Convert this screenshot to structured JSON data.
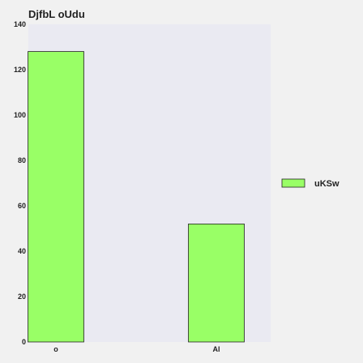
{
  "chart_data": {
    "type": "bar",
    "title": "DjfbL oUdu",
    "categories": [
      "o",
      "Al"
    ],
    "series": [
      {
        "name": "uKSw",
        "values": [
          128,
          52
        ],
        "color": "#99ff66"
      }
    ],
    "ylim": [
      0,
      140
    ],
    "yticks": [
      0,
      20,
      40,
      60,
      80,
      100,
      120,
      140
    ],
    "xlabel": "",
    "ylabel": "",
    "grid": false,
    "legend_position": "right",
    "colors": {
      "plot_background": "#eaeaf2",
      "page_background": "#f1f1f1",
      "bar_edge": "#222222"
    }
  }
}
